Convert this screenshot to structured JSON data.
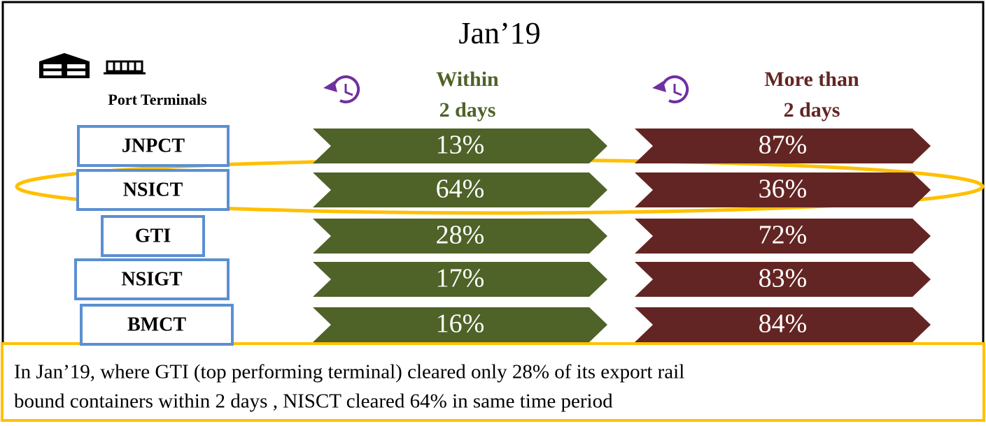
{
  "title": "Jan’19",
  "legend_label": "Port Terminals",
  "columns": [
    {
      "line1": "Within",
      "line2": "2 days",
      "color": "#4f6228"
    },
    {
      "line1": "More than",
      "line2": "2 days",
      "color": "#632523"
    }
  ],
  "rows": [
    {
      "terminal": "JNPCT",
      "cells": [
        "13%",
        "87%"
      ]
    },
    {
      "terminal": "NSICT",
      "cells": [
        "64%",
        "36%"
      ]
    },
    {
      "terminal": "GTI",
      "cells": [
        "28%",
        "72%"
      ]
    },
    {
      "terminal": "NSIGT",
      "cells": [
        "17%",
        "83%"
      ]
    },
    {
      "terminal": "BMCT",
      "cells": [
        "16%",
        "84%"
      ]
    }
  ],
  "note": [
    "In Jan’19, where GTI (top performing terminal) cleared only 28% of its export rail",
    "bound containers within 2 days , NISCT cleared 64% in same time period"
  ]
}
